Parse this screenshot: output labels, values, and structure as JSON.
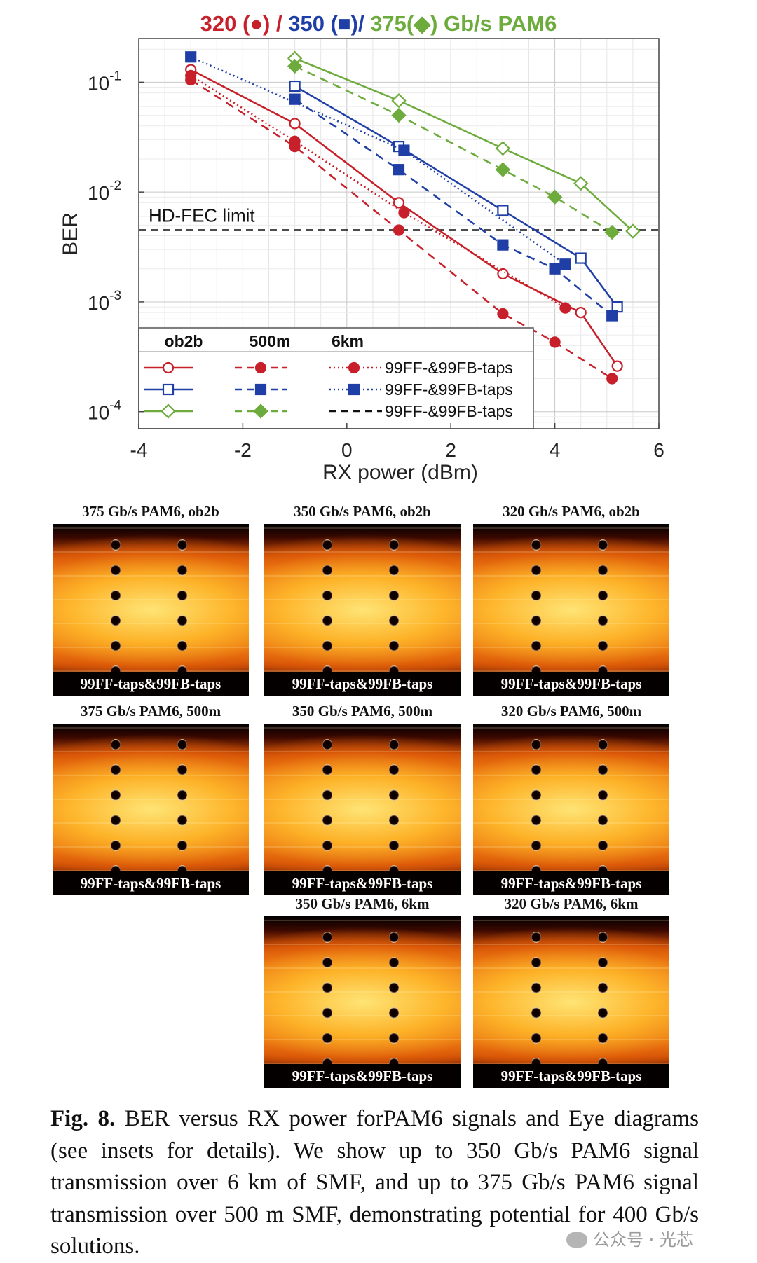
{
  "chart_data": {
    "type": "line",
    "title_parts": [
      {
        "text": "320 (",
        "color": "#c8202a"
      },
      {
        "text": "●",
        "color": "#c8202a"
      },
      {
        "text": ") / ",
        "color": "#c8202a"
      },
      {
        "text": "350 (",
        "color": "#1f3fa6"
      },
      {
        "text": "■",
        "color": "#1f3fa6"
      },
      {
        "text": ")/ ",
        "color": "#1f3fa6"
      },
      {
        "text": "375(",
        "color": "#6cab3c"
      },
      {
        "text": "◆",
        "color": "#6cab3c"
      },
      {
        "text": ") Gb/s PAM6",
        "color": "#6cab3c"
      }
    ],
    "xlabel": "RX power (dBm)",
    "ylabel": "BER",
    "xlim": [
      -4,
      6
    ],
    "ylim": [
      7e-05,
      0.25
    ],
    "yscale": "log",
    "x_ticks": [
      "-4",
      "-2",
      "0",
      "2",
      "4",
      "6"
    ],
    "y_ticks": [
      {
        "value": 0.1,
        "base": "10",
        "exp": "-1"
      },
      {
        "value": 0.01,
        "base": "10",
        "exp": "-2"
      },
      {
        "value": 0.001,
        "base": "10",
        "exp": "-3"
      },
      {
        "value": 0.0001,
        "base": "10",
        "exp": "-4"
      }
    ],
    "grid": true,
    "fec_limit": {
      "label": "HD-FEC limit",
      "value": 0.0045
    },
    "colors": {
      "320": "#c8202a",
      "350": "#1f3fa6",
      "375": "#6cab3c"
    },
    "legend": {
      "placement": "bottom-left",
      "headers": [
        "ob2b",
        "500m",
        "6km"
      ],
      "entry_label": "99FF-&99FB-taps",
      "rows": [
        "320",
        "350",
        "375"
      ]
    },
    "series": [
      {
        "rate": "320",
        "condition": "ob2b",
        "marker": "circle",
        "fill": false,
        "line": "solid",
        "x": [
          -3,
          -1,
          1,
          3,
          4.5,
          5.2
        ],
        "y": [
          0.13,
          0.042,
          0.008,
          0.0018,
          0.0008,
          0.00026
        ]
      },
      {
        "rate": "320",
        "condition": "500m",
        "marker": "circle",
        "fill": true,
        "line": "dashed",
        "x": [
          -3,
          -1,
          1,
          3,
          4,
          5.1
        ],
        "y": [
          0.105,
          0.026,
          0.0045,
          0.00078,
          0.00043,
          0.0002
        ]
      },
      {
        "rate": "320",
        "condition": "6km",
        "marker": "circle",
        "fill": true,
        "line": "dotted",
        "x": [
          -3,
          -1,
          1.1,
          4.2
        ],
        "y": [
          0.115,
          0.029,
          0.0065,
          0.00088
        ]
      },
      {
        "rate": "350",
        "condition": "ob2b",
        "marker": "square",
        "fill": false,
        "line": "solid",
        "x": [
          -1,
          1,
          3,
          4.5,
          5.2
        ],
        "y": [
          0.092,
          0.026,
          0.0068,
          0.0025,
          0.0009
        ]
      },
      {
        "rate": "350",
        "condition": "500m",
        "marker": "square",
        "fill": true,
        "line": "dashed",
        "x": [
          -1,
          1,
          3,
          4,
          5.1
        ],
        "y": [
          0.07,
          0.016,
          0.0033,
          0.002,
          0.00075
        ]
      },
      {
        "rate": "350",
        "condition": "6km",
        "marker": "square",
        "fill": true,
        "line": "dotted",
        "x": [
          -3,
          1.1,
          4.2
        ],
        "y": [
          0.17,
          0.024,
          0.0022
        ]
      },
      {
        "rate": "375",
        "condition": "ob2b",
        "marker": "diamond",
        "fill": false,
        "line": "solid",
        "x": [
          -1,
          1,
          3,
          4.5,
          5.5
        ],
        "y": [
          0.165,
          0.068,
          0.025,
          0.012,
          0.0044
        ]
      },
      {
        "rate": "375",
        "condition": "500m",
        "marker": "diamond",
        "fill": true,
        "line": "dashed",
        "x": [
          -1,
          1,
          3,
          4,
          5.1
        ],
        "y": [
          0.14,
          0.05,
          0.016,
          0.009,
          0.0043
        ]
      }
    ]
  },
  "eye_diagrams": [
    {
      "title": "375 Gb/s PAM6, ob2b",
      "label": "99FF-taps&99FB-taps"
    },
    {
      "title": "350 Gb/s PAM6, ob2b",
      "label": "99FF-taps&99FB-taps"
    },
    {
      "title": "320 Gb/s PAM6, ob2b",
      "label": "99FF-taps&99FB-taps"
    },
    {
      "title": "375 Gb/s PAM6, 500m",
      "label": "99FF-taps&99FB-taps"
    },
    {
      "title": "350 Gb/s PAM6, 500m",
      "label": "99FF-taps&99FB-taps"
    },
    {
      "title": "320 Gb/s PAM6, 500m",
      "label": "99FF-taps&99FB-taps"
    },
    {
      "title": "350 Gb/s PAM6, 6km",
      "label": "99FF-taps&99FB-taps"
    },
    {
      "title": "320 Gb/s PAM6, 6km",
      "label": "99FF-taps&99FB-taps"
    }
  ],
  "caption": {
    "label": "Fig. 8.",
    "text": " BER versus RX power forPAM6 signals and Eye diagrams (see insets for details). We show up to 350 Gb/s PAM6 signal transmission over 6 km of SMF, and up to 375 Gb/s PAM6 signal transmission over 500 m SMF, demonstrating potential for 400 Gb/s solutions."
  },
  "watermark": "公众号 · 光芯"
}
